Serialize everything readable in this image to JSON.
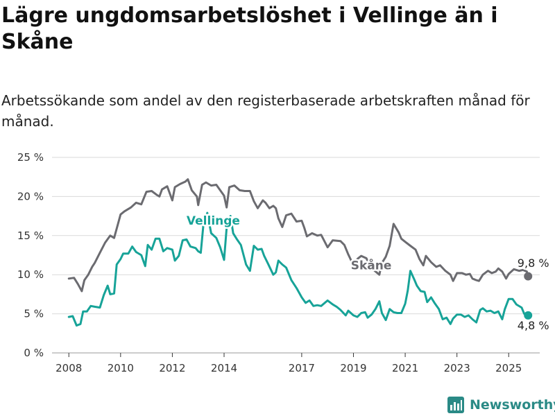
{
  "title": "Lägre ungdomsarbetslöshet i Vellinge än i Skåne",
  "subtitle": "Arbetssökande som andel av den registerbaserade arbetskraften månad för månad.",
  "brand": "Newsworthy",
  "colors": {
    "skane": "#6b6b70",
    "vellinge": "#17a398",
    "grid": "#d9d9d9",
    "brand": "#2a8a86"
  },
  "chart_data": {
    "type": "line",
    "ylim": [
      0,
      25
    ],
    "y_ticks": [
      0,
      5,
      10,
      15,
      20,
      25
    ],
    "y_tick_labels": [
      "0 %",
      "5 %",
      "10 %",
      "15 %",
      "20 %",
      "25 %"
    ],
    "x_ticks": [
      2008,
      2010,
      2012,
      2014,
      2017,
      2019,
      2021,
      2023,
      2025
    ],
    "x_tick_labels": [
      "2008",
      "2010",
      "2012",
      "2014",
      "2017",
      "2019",
      "2021",
      "2023",
      "2025"
    ],
    "grid": true,
    "series": [
      {
        "name": "Skåne",
        "end_label": "9,8 %",
        "points": [
          [
            2008.0,
            9.5
          ],
          [
            2008.2,
            9.6
          ],
          [
            2008.35,
            8.8
          ],
          [
            2008.5,
            7.9
          ],
          [
            2008.6,
            9.3
          ],
          [
            2008.75,
            10.0
          ],
          [
            2008.9,
            11.0
          ],
          [
            2009.0,
            11.5
          ],
          [
            2009.2,
            12.8
          ],
          [
            2009.4,
            14.1
          ],
          [
            2009.6,
            15.0
          ],
          [
            2009.75,
            14.7
          ],
          [
            2009.9,
            16.5
          ],
          [
            2010.0,
            17.7
          ],
          [
            2010.15,
            18.1
          ],
          [
            2010.4,
            18.6
          ],
          [
            2010.6,
            19.2
          ],
          [
            2010.8,
            19.0
          ],
          [
            2011.0,
            20.6
          ],
          [
            2011.2,
            20.7
          ],
          [
            2011.4,
            20.2
          ],
          [
            2011.5,
            20.0
          ],
          [
            2011.6,
            20.9
          ],
          [
            2011.8,
            21.3
          ],
          [
            2012.0,
            19.5
          ],
          [
            2012.1,
            21.2
          ],
          [
            2012.3,
            21.6
          ],
          [
            2012.5,
            21.9
          ],
          [
            2012.6,
            22.2
          ],
          [
            2012.75,
            20.8
          ],
          [
            2012.95,
            20.0
          ],
          [
            2013.0,
            18.9
          ],
          [
            2013.15,
            21.5
          ],
          [
            2013.3,
            21.8
          ],
          [
            2013.5,
            21.4
          ],
          [
            2013.7,
            21.5
          ],
          [
            2013.85,
            20.8
          ],
          [
            2014.0,
            20.1
          ],
          [
            2014.1,
            18.6
          ],
          [
            2014.2,
            21.2
          ],
          [
            2014.4,
            21.4
          ],
          [
            2014.6,
            20.8
          ],
          [
            2014.8,
            20.7
          ],
          [
            2015.0,
            20.7
          ],
          [
            2015.15,
            19.4
          ],
          [
            2015.3,
            18.5
          ],
          [
            2015.5,
            19.5
          ],
          [
            2015.6,
            19.2
          ],
          [
            2015.75,
            18.5
          ],
          [
            2015.9,
            18.8
          ],
          [
            2016.0,
            18.5
          ],
          [
            2016.1,
            17.2
          ],
          [
            2016.25,
            16.1
          ],
          [
            2016.4,
            17.6
          ],
          [
            2016.6,
            17.8
          ],
          [
            2016.8,
            16.8
          ],
          [
            2017.0,
            16.9
          ],
          [
            2017.1,
            16.0
          ],
          [
            2017.2,
            14.9
          ],
          [
            2017.4,
            15.3
          ],
          [
            2017.6,
            15.0
          ],
          [
            2017.75,
            15.1
          ],
          [
            2018.0,
            13.5
          ],
          [
            2018.2,
            14.4
          ],
          [
            2018.5,
            14.3
          ],
          [
            2018.65,
            13.8
          ],
          [
            2018.8,
            12.6
          ],
          [
            2019.0,
            11.2
          ],
          [
            2019.15,
            12.0
          ],
          [
            2019.3,
            12.4
          ],
          [
            2019.5,
            12.1
          ],
          [
            2019.6,
            11.4
          ],
          [
            2019.75,
            10.7
          ],
          [
            2020.0,
            10.0
          ],
          [
            2020.1,
            11.5
          ],
          [
            2020.25,
            12.3
          ],
          [
            2020.4,
            13.7
          ],
          [
            2020.55,
            16.5
          ],
          [
            2020.75,
            15.4
          ],
          [
            2020.85,
            14.6
          ],
          [
            2021.0,
            14.2
          ],
          [
            2021.2,
            13.7
          ],
          [
            2021.4,
            13.2
          ],
          [
            2021.55,
            12.0
          ],
          [
            2021.7,
            11.2
          ],
          [
            2021.8,
            12.4
          ],
          [
            2022.0,
            11.6
          ],
          [
            2022.2,
            11.0
          ],
          [
            2022.35,
            11.2
          ],
          [
            2022.55,
            10.5
          ],
          [
            2022.75,
            10.0
          ],
          [
            2022.85,
            9.2
          ],
          [
            2023.0,
            10.2
          ],
          [
            2023.2,
            10.2
          ],
          [
            2023.35,
            10.0
          ],
          [
            2023.5,
            10.1
          ],
          [
            2023.6,
            9.5
          ],
          [
            2023.75,
            9.3
          ],
          [
            2023.85,
            9.2
          ],
          [
            2024.0,
            10.0
          ],
          [
            2024.2,
            10.5
          ],
          [
            2024.35,
            10.2
          ],
          [
            2024.5,
            10.4
          ],
          [
            2024.6,
            10.8
          ],
          [
            2024.75,
            10.4
          ],
          [
            2024.9,
            9.5
          ],
          [
            2025.0,
            10.1
          ],
          [
            2025.2,
            10.7
          ],
          [
            2025.4,
            10.5
          ],
          [
            2025.55,
            10.6
          ],
          [
            2025.7,
            10.4
          ],
          [
            2025.75,
            9.8
          ]
        ]
      },
      {
        "name": "Vellinge",
        "end_label": "4,8 %",
        "points": [
          [
            2008.0,
            4.6
          ],
          [
            2008.15,
            4.7
          ],
          [
            2008.3,
            3.5
          ],
          [
            2008.45,
            3.7
          ],
          [
            2008.55,
            5.3
          ],
          [
            2008.7,
            5.3
          ],
          [
            2008.85,
            6.0
          ],
          [
            2009.0,
            5.9
          ],
          [
            2009.2,
            5.8
          ],
          [
            2009.35,
            7.4
          ],
          [
            2009.5,
            8.6
          ],
          [
            2009.6,
            7.5
          ],
          [
            2009.75,
            7.6
          ],
          [
            2009.85,
            11.3
          ],
          [
            2010.0,
            12.0
          ],
          [
            2010.1,
            12.7
          ],
          [
            2010.3,
            12.7
          ],
          [
            2010.45,
            13.6
          ],
          [
            2010.6,
            12.9
          ],
          [
            2010.8,
            12.5
          ],
          [
            2010.95,
            11.1
          ],
          [
            2011.05,
            13.8
          ],
          [
            2011.2,
            13.2
          ],
          [
            2011.35,
            14.6
          ],
          [
            2011.5,
            14.6
          ],
          [
            2011.65,
            13.0
          ],
          [
            2011.8,
            13.4
          ],
          [
            2012.0,
            13.2
          ],
          [
            2012.1,
            11.8
          ],
          [
            2012.25,
            12.4
          ],
          [
            2012.4,
            14.4
          ],
          [
            2012.55,
            14.5
          ],
          [
            2012.7,
            13.6
          ],
          [
            2012.9,
            13.4
          ],
          [
            2013.0,
            13.0
          ],
          [
            2013.1,
            12.8
          ],
          [
            2013.2,
            16.4
          ],
          [
            2013.35,
            17.9
          ],
          [
            2013.5,
            15.3
          ],
          [
            2013.7,
            14.7
          ],
          [
            2013.85,
            13.5
          ],
          [
            2014.0,
            11.9
          ],
          [
            2014.1,
            16.0
          ],
          [
            2014.25,
            17.5
          ],
          [
            2014.35,
            15.3
          ],
          [
            2014.5,
            14.5
          ],
          [
            2014.65,
            13.8
          ],
          [
            2014.85,
            11.3
          ],
          [
            2015.0,
            10.5
          ],
          [
            2015.15,
            13.7
          ],
          [
            2015.3,
            13.2
          ],
          [
            2015.45,
            13.3
          ],
          [
            2015.55,
            12.4
          ],
          [
            2015.7,
            11.4
          ],
          [
            2015.9,
            10.0
          ],
          [
            2016.0,
            10.3
          ],
          [
            2016.1,
            11.8
          ],
          [
            2016.25,
            11.3
          ],
          [
            2016.4,
            10.9
          ],
          [
            2016.6,
            9.3
          ],
          [
            2016.8,
            8.3
          ],
          [
            2017.0,
            7.1
          ],
          [
            2017.15,
            6.4
          ],
          [
            2017.3,
            6.7
          ],
          [
            2017.45,
            6.0
          ],
          [
            2017.6,
            6.1
          ],
          [
            2017.75,
            6.0
          ],
          [
            2018.0,
            6.7
          ],
          [
            2018.2,
            6.2
          ],
          [
            2018.35,
            5.9
          ],
          [
            2018.5,
            5.5
          ],
          [
            2018.7,
            4.8
          ],
          [
            2018.8,
            5.4
          ],
          [
            2019.0,
            4.8
          ],
          [
            2019.15,
            4.6
          ],
          [
            2019.3,
            5.1
          ],
          [
            2019.45,
            5.2
          ],
          [
            2019.55,
            4.5
          ],
          [
            2019.7,
            4.9
          ],
          [
            2019.85,
            5.6
          ],
          [
            2020.0,
            6.6
          ],
          [
            2020.1,
            5.1
          ],
          [
            2020.25,
            4.2
          ],
          [
            2020.4,
            5.6
          ],
          [
            2020.55,
            5.2
          ],
          [
            2020.7,
            5.1
          ],
          [
            2020.85,
            5.1
          ],
          [
            2021.0,
            6.3
          ],
          [
            2021.1,
            8.0
          ],
          [
            2021.2,
            10.5
          ],
          [
            2021.35,
            9.4
          ],
          [
            2021.45,
            8.6
          ],
          [
            2021.6,
            7.9
          ],
          [
            2021.75,
            7.8
          ],
          [
            2021.85,
            6.5
          ],
          [
            2022.0,
            7.1
          ],
          [
            2022.15,
            6.3
          ],
          [
            2022.3,
            5.6
          ],
          [
            2022.45,
            4.3
          ],
          [
            2022.6,
            4.5
          ],
          [
            2022.75,
            3.7
          ],
          [
            2022.85,
            4.4
          ],
          [
            2023.0,
            4.9
          ],
          [
            2023.15,
            4.9
          ],
          [
            2023.3,
            4.6
          ],
          [
            2023.45,
            4.8
          ],
          [
            2023.6,
            4.3
          ],
          [
            2023.75,
            3.9
          ],
          [
            2023.9,
            5.5
          ],
          [
            2024.0,
            5.7
          ],
          [
            2024.15,
            5.3
          ],
          [
            2024.3,
            5.4
          ],
          [
            2024.45,
            5.1
          ],
          [
            2024.6,
            5.3
          ],
          [
            2024.75,
            4.3
          ],
          [
            2024.85,
            5.6
          ],
          [
            2025.0,
            6.9
          ],
          [
            2025.15,
            6.9
          ],
          [
            2025.3,
            6.2
          ],
          [
            2025.5,
            5.8
          ],
          [
            2025.6,
            5.0
          ],
          [
            2025.75,
            4.8
          ]
        ]
      }
    ]
  }
}
